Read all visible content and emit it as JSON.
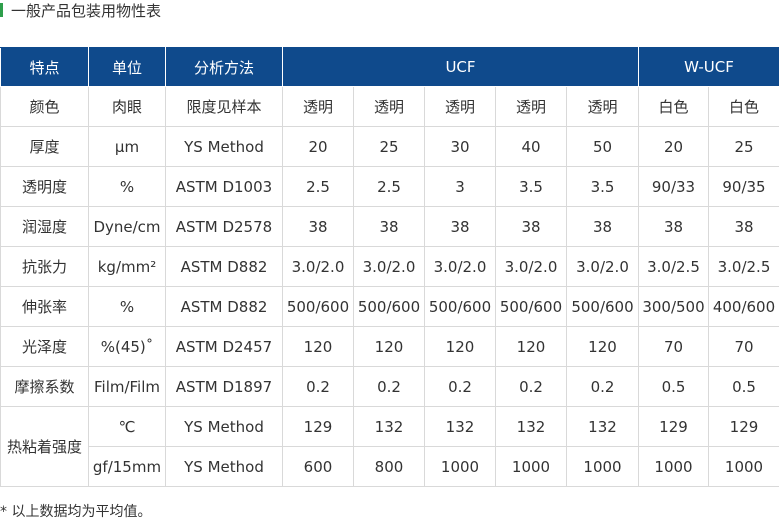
{
  "title": "一般产品包装用物性表",
  "header": {
    "col_feature": "特点",
    "col_unit": "单位",
    "col_method": "分析方法",
    "group_ucf": "UCF",
    "group_wucf": "W-UCF"
  },
  "rows": [
    {
      "feature": "颜色",
      "unit": "肉眼",
      "method": "限度见样本",
      "values": [
        "透明",
        "透明",
        "透明",
        "透明",
        "透明",
        "白色",
        "白色"
      ]
    },
    {
      "feature": "厚度",
      "unit": "μm",
      "method": "YS Method",
      "values": [
        "20",
        "25",
        "30",
        "40",
        "50",
        "20",
        "25"
      ]
    },
    {
      "feature": "透明度",
      "unit": "%",
      "method": "ASTM D1003",
      "values": [
        "2.5",
        "2.5",
        "3",
        "3.5",
        "3.5",
        "90/33",
        "90/35"
      ]
    },
    {
      "feature": "润湿度",
      "unit": "Dyne/cm",
      "method": "ASTM D2578",
      "values": [
        "38",
        "38",
        "38",
        "38",
        "38",
        "38",
        "38"
      ]
    },
    {
      "feature": "抗张力",
      "unit": "kg/mm²",
      "method": "ASTM D882",
      "values": [
        "3.0/2.0",
        "3.0/2.0",
        "3.0/2.0",
        "3.0/2.0",
        "3.0/2.0",
        "3.0/2.5",
        "3.0/2.5"
      ]
    },
    {
      "feature": "伸张率",
      "unit": "%",
      "method": "ASTM D882",
      "values": [
        "500/600",
        "500/600",
        "500/600",
        "500/600",
        "500/600",
        "300/500",
        "400/600"
      ]
    },
    {
      "feature": "光泽度",
      "unit": "%(45)˚",
      "method": "ASTM D2457",
      "values": [
        "120",
        "120",
        "120",
        "120",
        "120",
        "70",
        "70"
      ]
    },
    {
      "feature": "摩擦系数",
      "unit": "Film/Film",
      "method": "ASTM D1897",
      "values": [
        "0.2",
        "0.2",
        "0.2",
        "0.2",
        "0.2",
        "0.5",
        "0.5"
      ]
    }
  ],
  "heat_seal": {
    "feature": "热粘着强度",
    "rows": [
      {
        "unit": "℃",
        "method": "YS Method",
        "values": [
          "129",
          "132",
          "132",
          "132",
          "132",
          "129",
          "129"
        ]
      },
      {
        "unit": "gf/15mm",
        "method": "YS Method",
        "values": [
          "600",
          "800",
          "1000",
          "1000",
          "1000",
          "1000",
          "1000"
        ]
      }
    ]
  },
  "footnote": "* 以上数据均为平均值。"
}
